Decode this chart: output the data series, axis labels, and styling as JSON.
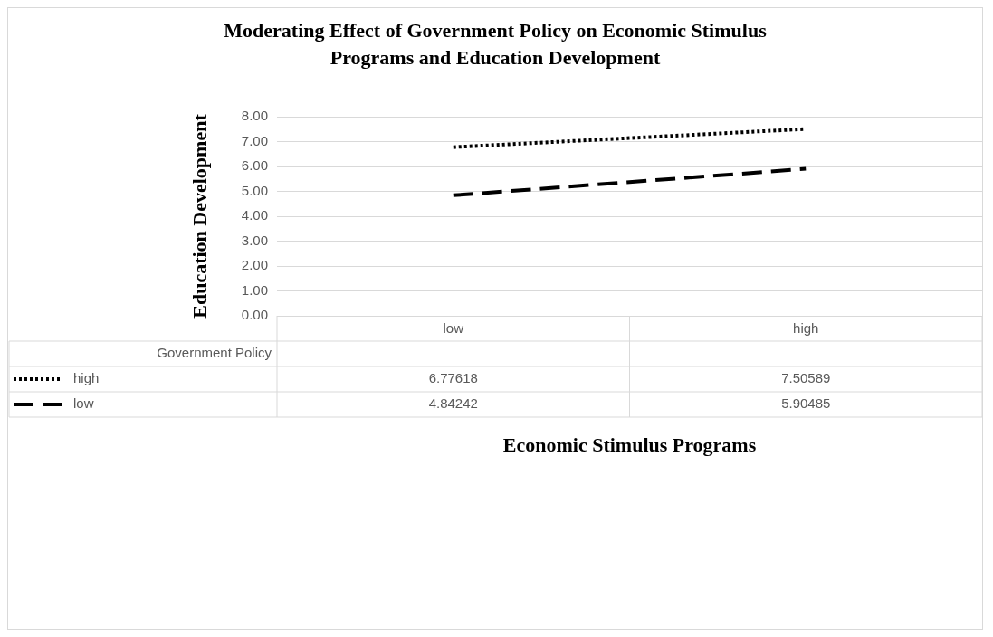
{
  "chart_data": {
    "type": "line",
    "title": "Moderating Effect of Government Policy on Economic Stimulus Programs and Education Development",
    "xlabel": "Economic Stimulus Programs",
    "ylabel": "Education Development",
    "legend_title": "Government Policy",
    "categories": [
      "low",
      "high"
    ],
    "series": [
      {
        "name": "high",
        "color": "#000000",
        "line_style": "dotted",
        "values": [
          6.77618,
          7.50589
        ]
      },
      {
        "name": "low",
        "color": "#000000",
        "line_style": "dashed",
        "values": [
          4.84242,
          5.90485
        ]
      }
    ],
    "ylim": [
      0,
      8
    ],
    "yticks": [
      {
        "value": 0,
        "label": "0.00"
      },
      {
        "value": 1,
        "label": "1.00"
      },
      {
        "value": 2,
        "label": "2.00"
      },
      {
        "value": 3,
        "label": "3.00"
      },
      {
        "value": 4,
        "label": "4.00"
      },
      {
        "value": 5,
        "label": "5.00"
      },
      {
        "value": 6,
        "label": "6.00"
      },
      {
        "value": 7,
        "label": "7.00"
      },
      {
        "value": 8,
        "label": "8.00"
      }
    ],
    "grid": "y",
    "legend": "bottom",
    "data_labels": true,
    "marker": "none"
  }
}
